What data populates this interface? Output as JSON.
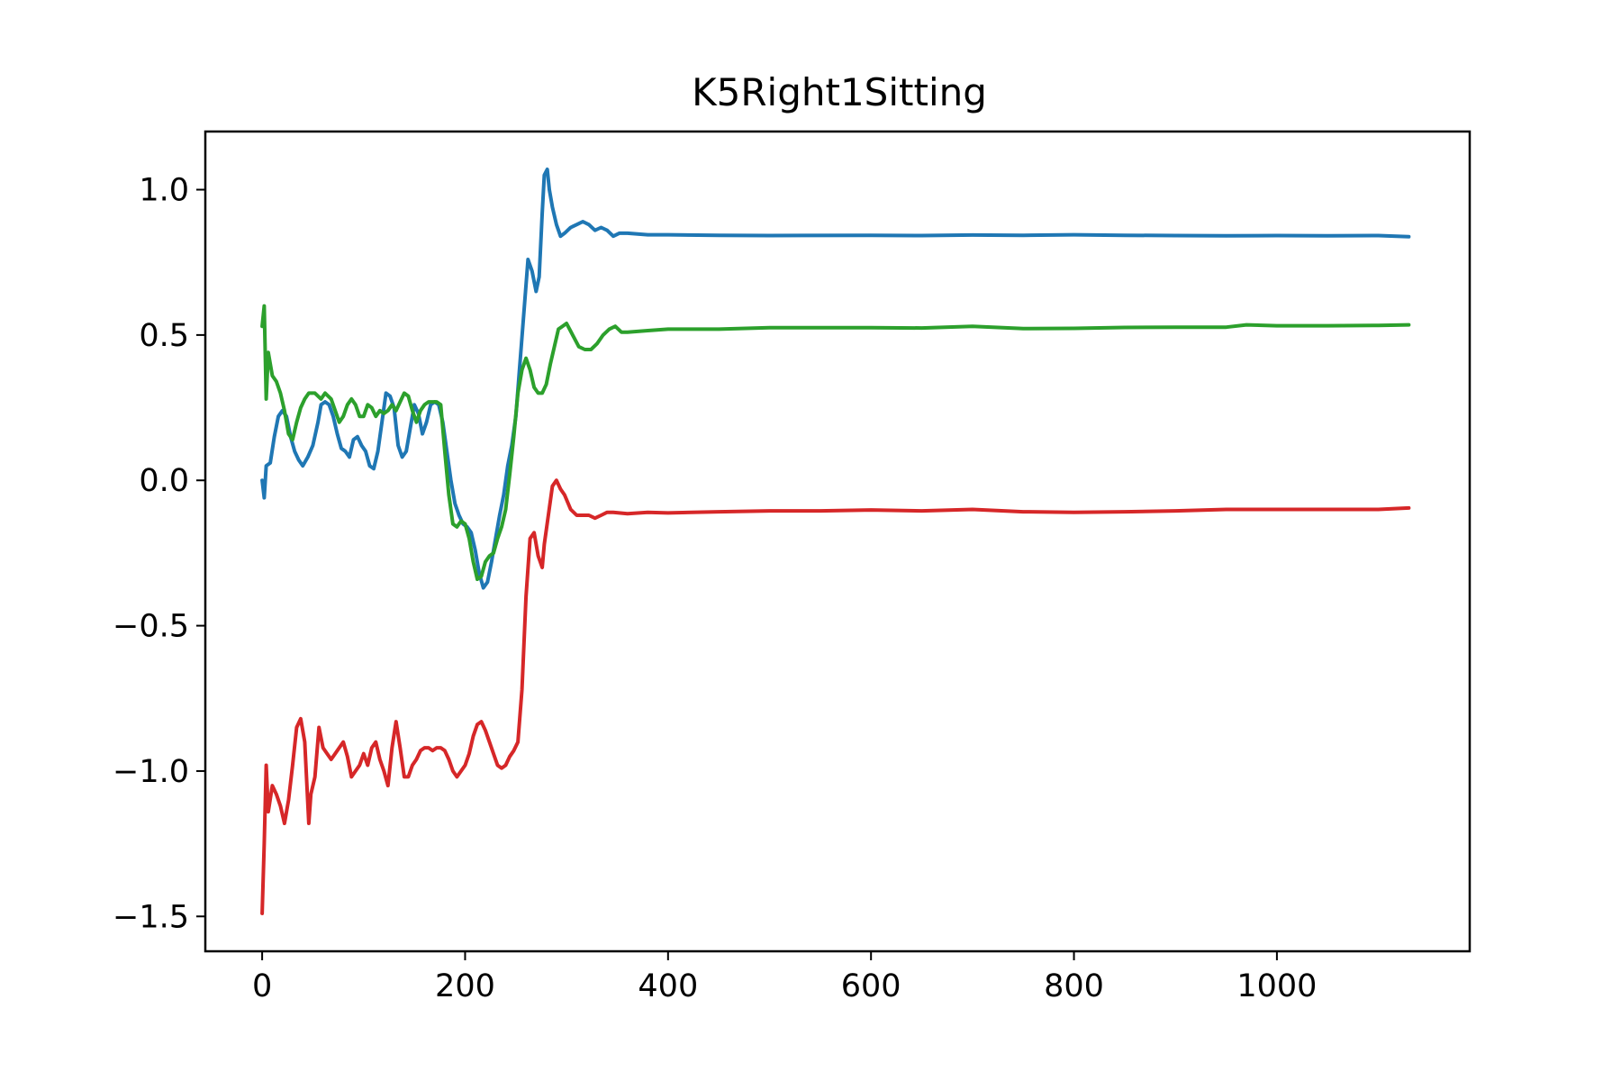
{
  "chart_data": {
    "type": "line",
    "title": "K5Right1Sitting",
    "xlabel": "",
    "ylabel": "",
    "xlim": [
      -56,
      1190
    ],
    "ylim": [
      -1.62,
      1.2
    ],
    "xticks": [
      0,
      200,
      400,
      600,
      800,
      1000
    ],
    "yticks": [
      -1.5,
      -1.0,
      -0.5,
      0.0,
      0.5,
      1.0
    ],
    "xtick_labels": [
      "0",
      "200",
      "400",
      "600",
      "800",
      "1000"
    ],
    "ytick_labels": [
      "−1.5",
      "−1.0",
      "−0.5",
      "0.0",
      "0.5",
      "1.0"
    ],
    "grid": false,
    "legend": null,
    "series": [
      {
        "color": "#1f77b4",
        "points": [
          [
            0,
            0.0
          ],
          [
            2,
            -0.06
          ],
          [
            4,
            0.05
          ],
          [
            8,
            0.06
          ],
          [
            12,
            0.15
          ],
          [
            16,
            0.22
          ],
          [
            20,
            0.24
          ],
          [
            24,
            0.22
          ],
          [
            28,
            0.15
          ],
          [
            32,
            0.1
          ],
          [
            36,
            0.07
          ],
          [
            40,
            0.05
          ],
          [
            45,
            0.08
          ],
          [
            50,
            0.12
          ],
          [
            55,
            0.2
          ],
          [
            58,
            0.26
          ],
          [
            62,
            0.27
          ],
          [
            66,
            0.26
          ],
          [
            70,
            0.22
          ],
          [
            74,
            0.16
          ],
          [
            78,
            0.11
          ],
          [
            82,
            0.1
          ],
          [
            86,
            0.08
          ],
          [
            90,
            0.14
          ],
          [
            94,
            0.15
          ],
          [
            98,
            0.12
          ],
          [
            102,
            0.1
          ],
          [
            106,
            0.05
          ],
          [
            110,
            0.04
          ],
          [
            114,
            0.1
          ],
          [
            118,
            0.2
          ],
          [
            122,
            0.3
          ],
          [
            126,
            0.29
          ],
          [
            130,
            0.25
          ],
          [
            134,
            0.12
          ],
          [
            138,
            0.08
          ],
          [
            142,
            0.1
          ],
          [
            146,
            0.18
          ],
          [
            150,
            0.26
          ],
          [
            154,
            0.23
          ],
          [
            158,
            0.16
          ],
          [
            162,
            0.2
          ],
          [
            166,
            0.26
          ],
          [
            170,
            0.27
          ],
          [
            174,
            0.26
          ],
          [
            178,
            0.2
          ],
          [
            182,
            0.1
          ],
          [
            186,
            0.0
          ],
          [
            190,
            -0.08
          ],
          [
            194,
            -0.12
          ],
          [
            198,
            -0.15
          ],
          [
            202,
            -0.16
          ],
          [
            206,
            -0.18
          ],
          [
            210,
            -0.24
          ],
          [
            214,
            -0.32
          ],
          [
            218,
            -0.37
          ],
          [
            222,
            -0.35
          ],
          [
            226,
            -0.28
          ],
          [
            230,
            -0.2
          ],
          [
            234,
            -0.12
          ],
          [
            238,
            -0.05
          ],
          [
            242,
            0.05
          ],
          [
            246,
            0.12
          ],
          [
            250,
            0.22
          ],
          [
            254,
            0.4
          ],
          [
            258,
            0.58
          ],
          [
            262,
            0.76
          ],
          [
            266,
            0.72
          ],
          [
            270,
            0.65
          ],
          [
            273,
            0.7
          ],
          [
            276,
            0.92
          ],
          [
            278,
            1.05
          ],
          [
            281,
            1.07
          ],
          [
            283,
            1.0
          ],
          [
            286,
            0.94
          ],
          [
            290,
            0.88
          ],
          [
            294,
            0.84
          ],
          [
            298,
            0.85
          ],
          [
            304,
            0.87
          ],
          [
            310,
            0.88
          ],
          [
            316,
            0.89
          ],
          [
            322,
            0.88
          ],
          [
            328,
            0.86
          ],
          [
            334,
            0.87
          ],
          [
            340,
            0.86
          ],
          [
            346,
            0.84
          ],
          [
            352,
            0.85
          ],
          [
            360,
            0.85
          ],
          [
            380,
            0.845
          ],
          [
            400,
            0.845
          ],
          [
            450,
            0.843
          ],
          [
            500,
            0.842
          ],
          [
            600,
            0.843
          ],
          [
            650,
            0.842
          ],
          [
            700,
            0.844
          ],
          [
            750,
            0.843
          ],
          [
            800,
            0.845
          ],
          [
            850,
            0.843
          ],
          [
            900,
            0.842
          ],
          [
            950,
            0.841
          ],
          [
            1000,
            0.842
          ],
          [
            1050,
            0.841
          ],
          [
            1100,
            0.842
          ],
          [
            1130,
            0.838
          ]
        ]
      },
      {
        "color": "#2ca02c",
        "points": [
          [
            0,
            0.53
          ],
          [
            2,
            0.6
          ],
          [
            4,
            0.28
          ],
          [
            6,
            0.44
          ],
          [
            10,
            0.36
          ],
          [
            14,
            0.34
          ],
          [
            18,
            0.3
          ],
          [
            22,
            0.24
          ],
          [
            26,
            0.16
          ],
          [
            30,
            0.14
          ],
          [
            34,
            0.2
          ],
          [
            38,
            0.25
          ],
          [
            42,
            0.28
          ],
          [
            46,
            0.3
          ],
          [
            52,
            0.3
          ],
          [
            58,
            0.28
          ],
          [
            62,
            0.3
          ],
          [
            68,
            0.28
          ],
          [
            72,
            0.24
          ],
          [
            76,
            0.2
          ],
          [
            80,
            0.22
          ],
          [
            84,
            0.26
          ],
          [
            88,
            0.28
          ],
          [
            92,
            0.26
          ],
          [
            96,
            0.22
          ],
          [
            100,
            0.22
          ],
          [
            104,
            0.26
          ],
          [
            108,
            0.25
          ],
          [
            112,
            0.22
          ],
          [
            116,
            0.24
          ],
          [
            120,
            0.23
          ],
          [
            124,
            0.24
          ],
          [
            128,
            0.26
          ],
          [
            132,
            0.24
          ],
          [
            136,
            0.27
          ],
          [
            140,
            0.3
          ],
          [
            144,
            0.29
          ],
          [
            148,
            0.24
          ],
          [
            152,
            0.2
          ],
          [
            156,
            0.24
          ],
          [
            160,
            0.26
          ],
          [
            164,
            0.27
          ],
          [
            168,
            0.27
          ],
          [
            172,
            0.27
          ],
          [
            176,
            0.26
          ],
          [
            180,
            0.1
          ],
          [
            184,
            -0.05
          ],
          [
            188,
            -0.15
          ],
          [
            192,
            -0.16
          ],
          [
            196,
            -0.14
          ],
          [
            200,
            -0.15
          ],
          [
            204,
            -0.2
          ],
          [
            208,
            -0.28
          ],
          [
            212,
            -0.34
          ],
          [
            216,
            -0.33
          ],
          [
            220,
            -0.28
          ],
          [
            224,
            -0.26
          ],
          [
            228,
            -0.25
          ],
          [
            232,
            -0.2
          ],
          [
            236,
            -0.16
          ],
          [
            240,
            -0.1
          ],
          [
            244,
            0.02
          ],
          [
            248,
            0.15
          ],
          [
            252,
            0.3
          ],
          [
            256,
            0.38
          ],
          [
            260,
            0.42
          ],
          [
            264,
            0.38
          ],
          [
            268,
            0.32
          ],
          [
            272,
            0.3
          ],
          [
            276,
            0.3
          ],
          [
            280,
            0.33
          ],
          [
            284,
            0.4
          ],
          [
            288,
            0.46
          ],
          [
            292,
            0.52
          ],
          [
            296,
            0.53
          ],
          [
            300,
            0.54
          ],
          [
            306,
            0.5
          ],
          [
            312,
            0.46
          ],
          [
            318,
            0.45
          ],
          [
            324,
            0.45
          ],
          [
            330,
            0.47
          ],
          [
            336,
            0.5
          ],
          [
            342,
            0.52
          ],
          [
            348,
            0.53
          ],
          [
            354,
            0.51
          ],
          [
            360,
            0.51
          ],
          [
            380,
            0.515
          ],
          [
            400,
            0.52
          ],
          [
            450,
            0.52
          ],
          [
            500,
            0.525
          ],
          [
            550,
            0.525
          ],
          [
            600,
            0.525
          ],
          [
            650,
            0.524
          ],
          [
            700,
            0.53
          ],
          [
            750,
            0.522
          ],
          [
            800,
            0.523
          ],
          [
            850,
            0.526
          ],
          [
            900,
            0.527
          ],
          [
            950,
            0.527
          ],
          [
            970,
            0.535
          ],
          [
            1000,
            0.532
          ],
          [
            1050,
            0.532
          ],
          [
            1100,
            0.533
          ],
          [
            1130,
            0.535
          ]
        ]
      },
      {
        "color": "#d62728",
        "points": [
          [
            0,
            -1.49
          ],
          [
            2,
            -1.25
          ],
          [
            4,
            -0.98
          ],
          [
            6,
            -1.14
          ],
          [
            10,
            -1.05
          ],
          [
            14,
            -1.08
          ],
          [
            18,
            -1.12
          ],
          [
            22,
            -1.18
          ],
          [
            26,
            -1.1
          ],
          [
            30,
            -0.98
          ],
          [
            34,
            -0.85
          ],
          [
            38,
            -0.82
          ],
          [
            42,
            -0.9
          ],
          [
            46,
            -1.18
          ],
          [
            48,
            -1.08
          ],
          [
            52,
            -1.02
          ],
          [
            56,
            -0.85
          ],
          [
            60,
            -0.92
          ],
          [
            64,
            -0.94
          ],
          [
            68,
            -0.96
          ],
          [
            72,
            -0.94
          ],
          [
            76,
            -0.92
          ],
          [
            80,
            -0.9
          ],
          [
            84,
            -0.95
          ],
          [
            88,
            -1.02
          ],
          [
            92,
            -1.0
          ],
          [
            96,
            -0.98
          ],
          [
            100,
            -0.94
          ],
          [
            104,
            -0.98
          ],
          [
            108,
            -0.92
          ],
          [
            112,
            -0.9
          ],
          [
            116,
            -0.96
          ],
          [
            120,
            -1.0
          ],
          [
            124,
            -1.05
          ],
          [
            128,
            -0.92
          ],
          [
            132,
            -0.83
          ],
          [
            136,
            -0.92
          ],
          [
            140,
            -1.02
          ],
          [
            144,
            -1.02
          ],
          [
            148,
            -0.98
          ],
          [
            152,
            -0.96
          ],
          [
            156,
            -0.93
          ],
          [
            160,
            -0.92
          ],
          [
            164,
            -0.92
          ],
          [
            168,
            -0.93
          ],
          [
            172,
            -0.92
          ],
          [
            176,
            -0.92
          ],
          [
            180,
            -0.93
          ],
          [
            184,
            -0.96
          ],
          [
            188,
            -1.0
          ],
          [
            192,
            -1.02
          ],
          [
            196,
            -1.0
          ],
          [
            200,
            -0.98
          ],
          [
            204,
            -0.94
          ],
          [
            208,
            -0.88
          ],
          [
            212,
            -0.84
          ],
          [
            216,
            -0.83
          ],
          [
            220,
            -0.86
          ],
          [
            224,
            -0.9
          ],
          [
            228,
            -0.94
          ],
          [
            232,
            -0.98
          ],
          [
            236,
            -0.99
          ],
          [
            240,
            -0.98
          ],
          [
            244,
            -0.95
          ],
          [
            248,
            -0.93
          ],
          [
            252,
            -0.9
          ],
          [
            256,
            -0.72
          ],
          [
            260,
            -0.4
          ],
          [
            264,
            -0.2
          ],
          [
            268,
            -0.18
          ],
          [
            272,
            -0.26
          ],
          [
            276,
            -0.3
          ],
          [
            278,
            -0.22
          ],
          [
            282,
            -0.12
          ],
          [
            286,
            -0.02
          ],
          [
            290,
            0.0
          ],
          [
            294,
            -0.03
          ],
          [
            298,
            -0.05
          ],
          [
            304,
            -0.1
          ],
          [
            310,
            -0.12
          ],
          [
            316,
            -0.12
          ],
          [
            322,
            -0.12
          ],
          [
            328,
            -0.13
          ],
          [
            334,
            -0.12
          ],
          [
            340,
            -0.11
          ],
          [
            346,
            -0.11
          ],
          [
            360,
            -0.115
          ],
          [
            380,
            -0.11
          ],
          [
            400,
            -0.112
          ],
          [
            450,
            -0.108
          ],
          [
            500,
            -0.105
          ],
          [
            550,
            -0.105
          ],
          [
            600,
            -0.102
          ],
          [
            650,
            -0.105
          ],
          [
            700,
            -0.1
          ],
          [
            750,
            -0.108
          ],
          [
            800,
            -0.11
          ],
          [
            850,
            -0.108
          ],
          [
            900,
            -0.105
          ],
          [
            950,
            -0.1
          ],
          [
            1000,
            -0.1
          ],
          [
            1050,
            -0.1
          ],
          [
            1100,
            -0.1
          ],
          [
            1130,
            -0.095
          ]
        ]
      }
    ]
  }
}
